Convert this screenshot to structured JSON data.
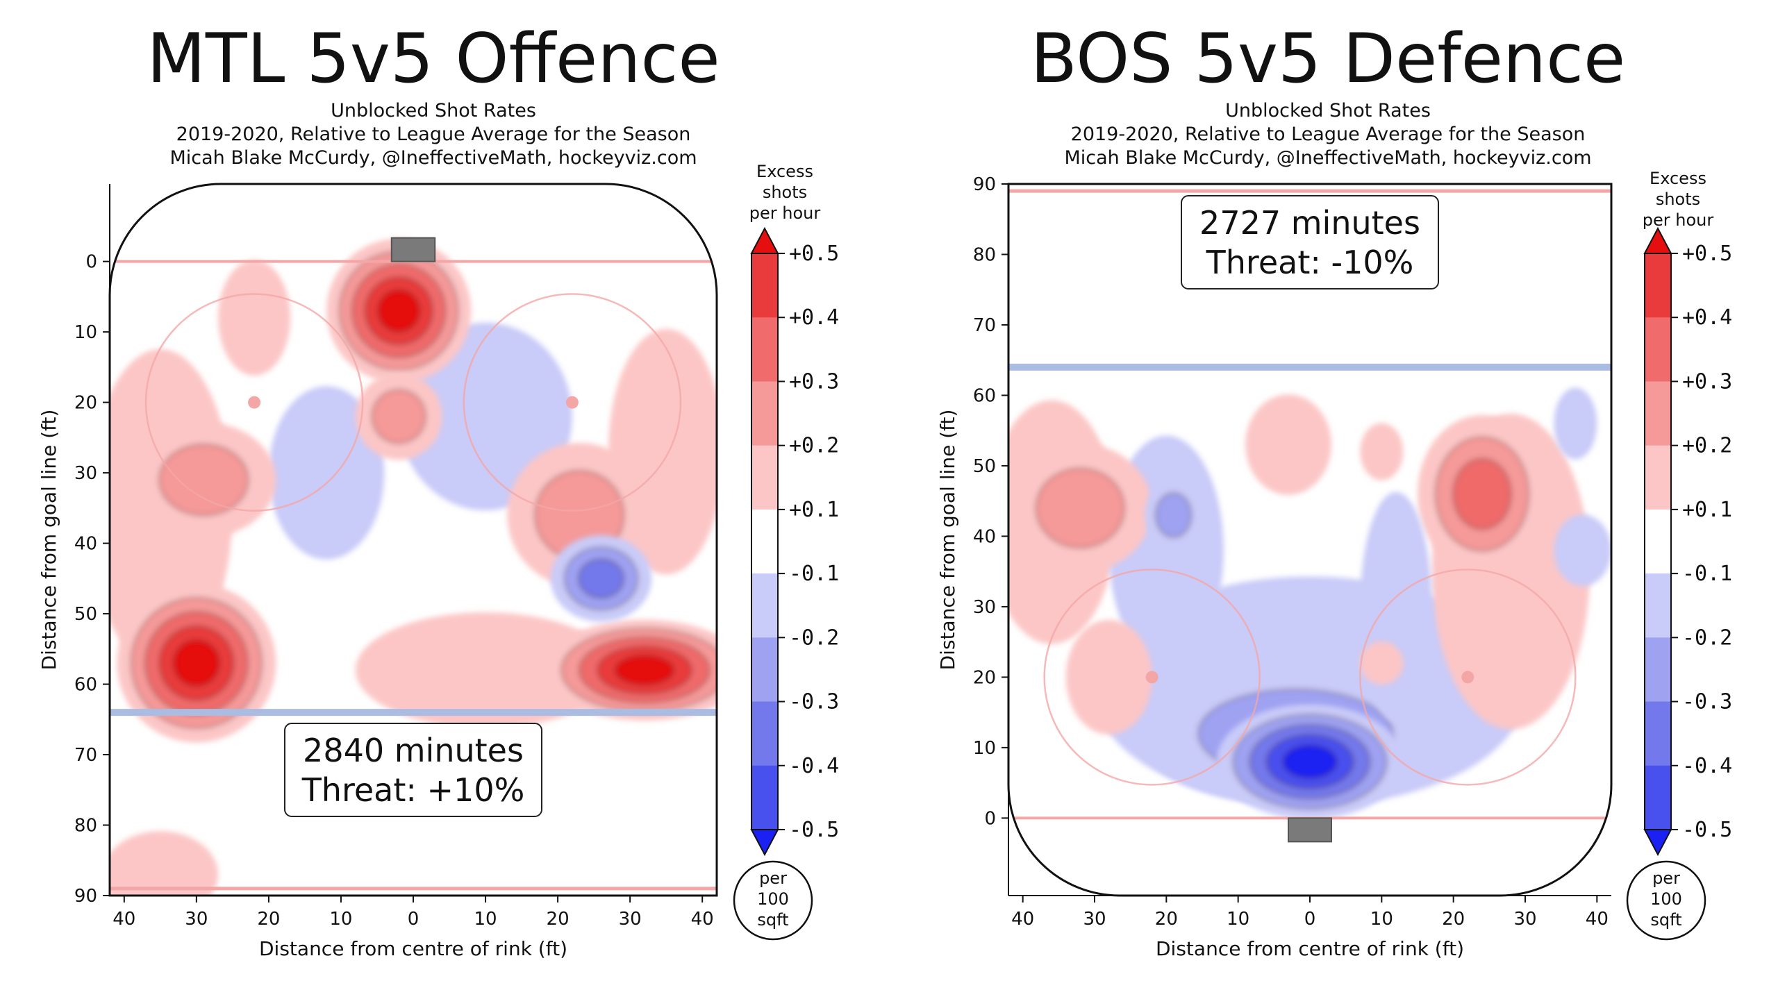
{
  "chart_data": [
    {
      "type": "heatmap",
      "title": "MTL 5v5 Offence",
      "subtitle": [
        "Unblocked Shot Rates",
        "2019-2020, Relative to League Average for the Season",
        "Micah Blake McCurdy, @IneffectiveMath, hockeyviz.com"
      ],
      "xlabel": "Distance from centre of rink (ft)",
      "ylabel": "Distance from goal line (ft)",
      "xlim": [
        -42,
        42
      ],
      "ylim": [
        -11,
        90
      ],
      "y_axis_inverted": true,
      "x_ticks": [
        40,
        30,
        20,
        10,
        0,
        10,
        20,
        30,
        40
      ],
      "y_ticks": [
        0,
        10,
        20,
        30,
        40,
        50,
        60,
        70,
        80,
        90
      ],
      "goal_position": "top",
      "annotation_lines": [
        "2840 minutes",
        "Threat: +10%"
      ],
      "blobs": [
        {
          "x": -2,
          "y": 7,
          "rx": 10,
          "ry": 10,
          "level": 0.5
        },
        {
          "x": -2,
          "y": 22,
          "rx": 6,
          "ry": 6,
          "level": 0.2
        },
        {
          "x": -30,
          "y": 57,
          "rx": 11,
          "ry": 11,
          "level": 0.5
        },
        {
          "x": 32,
          "y": 58,
          "rx": 14,
          "ry": 7,
          "level": 0.5
        },
        {
          "x": -29,
          "y": 31,
          "rx": 10,
          "ry": 8,
          "level": 0.2
        },
        {
          "x": -35,
          "y": 35,
          "rx": 10,
          "ry": 22,
          "level": 0.1
        },
        {
          "x": -22,
          "y": 8,
          "rx": 5,
          "ry": 8,
          "level": 0.1
        },
        {
          "x": 23,
          "y": 36,
          "rx": 10,
          "ry": 10,
          "level": 0.2
        },
        {
          "x": 35,
          "y": 27,
          "rx": 8,
          "ry": 17,
          "level": 0.1
        },
        {
          "x": 10,
          "y": 58,
          "rx": 18,
          "ry": 8,
          "level": 0.1
        },
        {
          "x": -35,
          "y": 87,
          "rx": 8,
          "ry": 6,
          "level": 0.1
        },
        {
          "x": 10,
          "y": 22,
          "rx": 12,
          "ry": 13,
          "level": -0.1
        },
        {
          "x": -12,
          "y": 30,
          "rx": 8,
          "ry": 12,
          "level": -0.1
        },
        {
          "x": 26,
          "y": 45,
          "rx": 7,
          "ry": 6,
          "level": -0.3
        }
      ],
      "colorbar": {
        "label": [
          "Excess",
          "shots",
          "per hour"
        ],
        "ticks": [
          "+0.5",
          "+0.4",
          "+0.3",
          "+0.2",
          "+0.1",
          "-0.1",
          "-0.2",
          "-0.3",
          "-0.4",
          "-0.5"
        ],
        "unit": [
          "per",
          "100",
          "sqft"
        ]
      }
    },
    {
      "type": "heatmap",
      "title": "BOS 5v5 Defence",
      "subtitle": [
        "Unblocked Shot Rates",
        "2019-2020, Relative to League Average for the Season",
        "Micah Blake McCurdy, @IneffectiveMath, hockeyviz.com"
      ],
      "xlabel": "Distance from centre of rink (ft)",
      "ylabel": "Distance from goal line (ft)",
      "xlim": [
        -42,
        42
      ],
      "ylim": [
        -11,
        90
      ],
      "y_axis_inverted": false,
      "x_ticks": [
        40,
        30,
        20,
        10,
        0,
        10,
        20,
        30,
        40
      ],
      "y_ticks": [
        0,
        10,
        20,
        30,
        40,
        50,
        60,
        70,
        80,
        90
      ],
      "goal_position": "bottom",
      "annotation_lines": [
        "2727 minutes",
        "Threat: -10%"
      ],
      "blobs": [
        {
          "x": -32,
          "y": 44,
          "rx": 10,
          "ry": 9,
          "level": 0.2
        },
        {
          "x": -36,
          "y": 42,
          "rx": 9,
          "ry": 17,
          "level": 0.1
        },
        {
          "x": 24,
          "y": 46,
          "rx": 9,
          "ry": 11,
          "level": 0.3
        },
        {
          "x": 28,
          "y": 35,
          "rx": 11,
          "ry": 22,
          "level": 0.1
        },
        {
          "x": -3,
          "y": 53,
          "rx": 6,
          "ry": 7,
          "level": 0.1
        },
        {
          "x": 10,
          "y": 52,
          "rx": 3,
          "ry": 4,
          "level": 0.1
        },
        {
          "x": -28,
          "y": 20,
          "rx": 6,
          "ry": 8,
          "level": 0.1
        },
        {
          "x": 10,
          "y": 22,
          "rx": 3,
          "ry": 3,
          "level": 0.1
        },
        {
          "x": 0,
          "y": 8,
          "rx": 13,
          "ry": 8,
          "level": -0.5
        },
        {
          "x": -2,
          "y": 12,
          "rx": 22,
          "ry": 10,
          "level": -0.2
        },
        {
          "x": 0,
          "y": 18,
          "rx": 30,
          "ry": 16,
          "level": -0.1
        },
        {
          "x": -20,
          "y": 38,
          "rx": 8,
          "ry": 16,
          "level": -0.1
        },
        {
          "x": -19,
          "y": 43,
          "rx": 4,
          "ry": 5,
          "level": -0.2
        },
        {
          "x": 12,
          "y": 30,
          "rx": 5,
          "ry": 16,
          "level": -0.1
        },
        {
          "x": 38,
          "y": 38,
          "rx": 4,
          "ry": 5,
          "level": -0.1
        },
        {
          "x": 37,
          "y": 56,
          "rx": 3,
          "ry": 5,
          "level": -0.1
        }
      ],
      "colorbar": {
        "label": [
          "Excess",
          "shots",
          "per hour"
        ],
        "ticks": [
          "+0.5",
          "+0.4",
          "+0.3",
          "+0.2",
          "+0.1",
          "-0.1",
          "-0.2",
          "-0.3",
          "-0.4",
          "-0.5"
        ],
        "unit": [
          "per",
          "100",
          "sqft"
        ]
      }
    }
  ],
  "palette": {
    "pos": [
      "#fcc6c6",
      "#f59999",
      "#f06b6b",
      "#e93b3b",
      "#e60f0f"
    ],
    "neg": [
      "#c9cbf8",
      "#9ea2f1",
      "#7378eb",
      "#4850ee",
      "#1a21f2"
    ],
    "rink_line_red": "#f4a6a6",
    "rink_line_blue": "#aabce2",
    "goal": "#7a7a7a"
  }
}
